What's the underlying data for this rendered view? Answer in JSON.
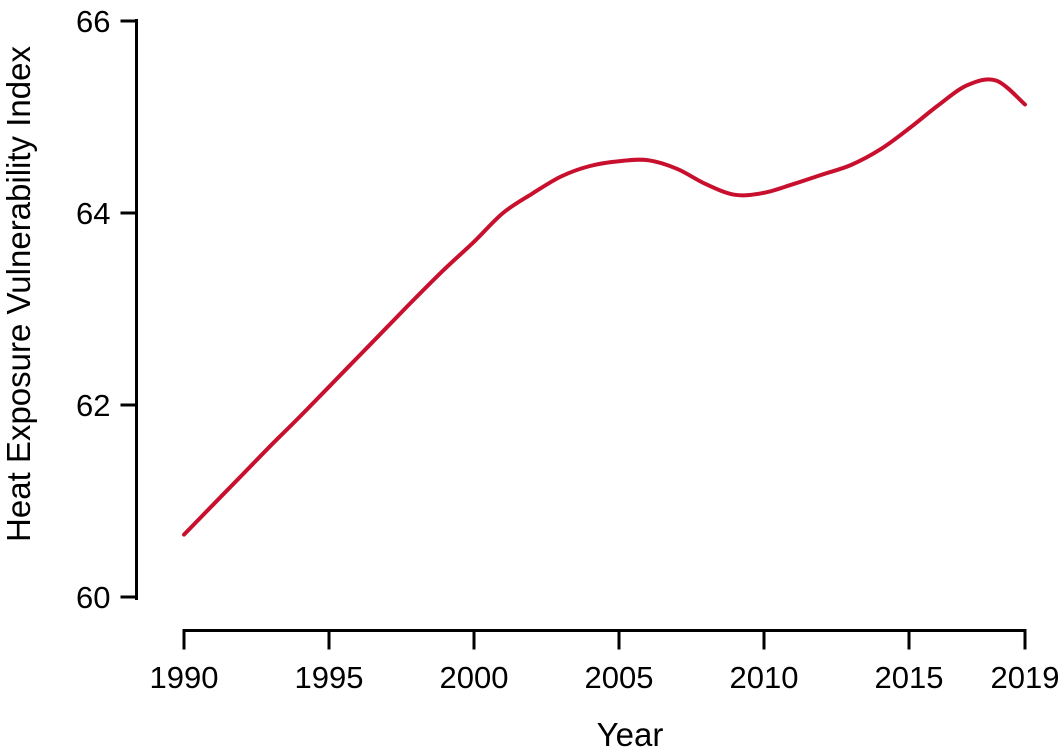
{
  "figure": {
    "background": "#ffffff",
    "axis_color": "#000000",
    "text_color": "#000000"
  },
  "chart_data": {
    "type": "line",
    "title": "",
    "xlabel": "Year",
    "ylabel": "Heat Exposure Vulnerability Index",
    "series": [
      {
        "name": "Heat Exposure Vulnerability Index",
        "color": "#c8102e",
        "x": [
          1990,
          1991,
          1992,
          1993,
          1994,
          1995,
          1996,
          1997,
          1998,
          1999,
          2000,
          2001,
          2002,
          2003,
          2004,
          2005,
          2006,
          2007,
          2008,
          2009,
          2010,
          2011,
          2012,
          2013,
          2014,
          2015,
          2016,
          2017,
          2018,
          2019
        ],
        "y": [
          60.65,
          60.96,
          61.27,
          61.58,
          61.88,
          62.19,
          62.5,
          62.81,
          63.12,
          63.42,
          63.7,
          64.0,
          64.2,
          64.38,
          64.49,
          64.54,
          64.55,
          64.46,
          64.3,
          64.19,
          64.21,
          64.3,
          64.4,
          64.5,
          64.66,
          64.88,
          65.12,
          65.33,
          65.38,
          65.13
        ]
      }
    ],
    "xticks": [
      1990,
      1995,
      2000,
      2005,
      2010,
      2015,
      2019
    ],
    "yticks": [
      60,
      62,
      64,
      66
    ],
    "xlim": [
      1990,
      2019
    ],
    "ylim": [
      60,
      66
    ],
    "grid": false,
    "legend": "none"
  }
}
